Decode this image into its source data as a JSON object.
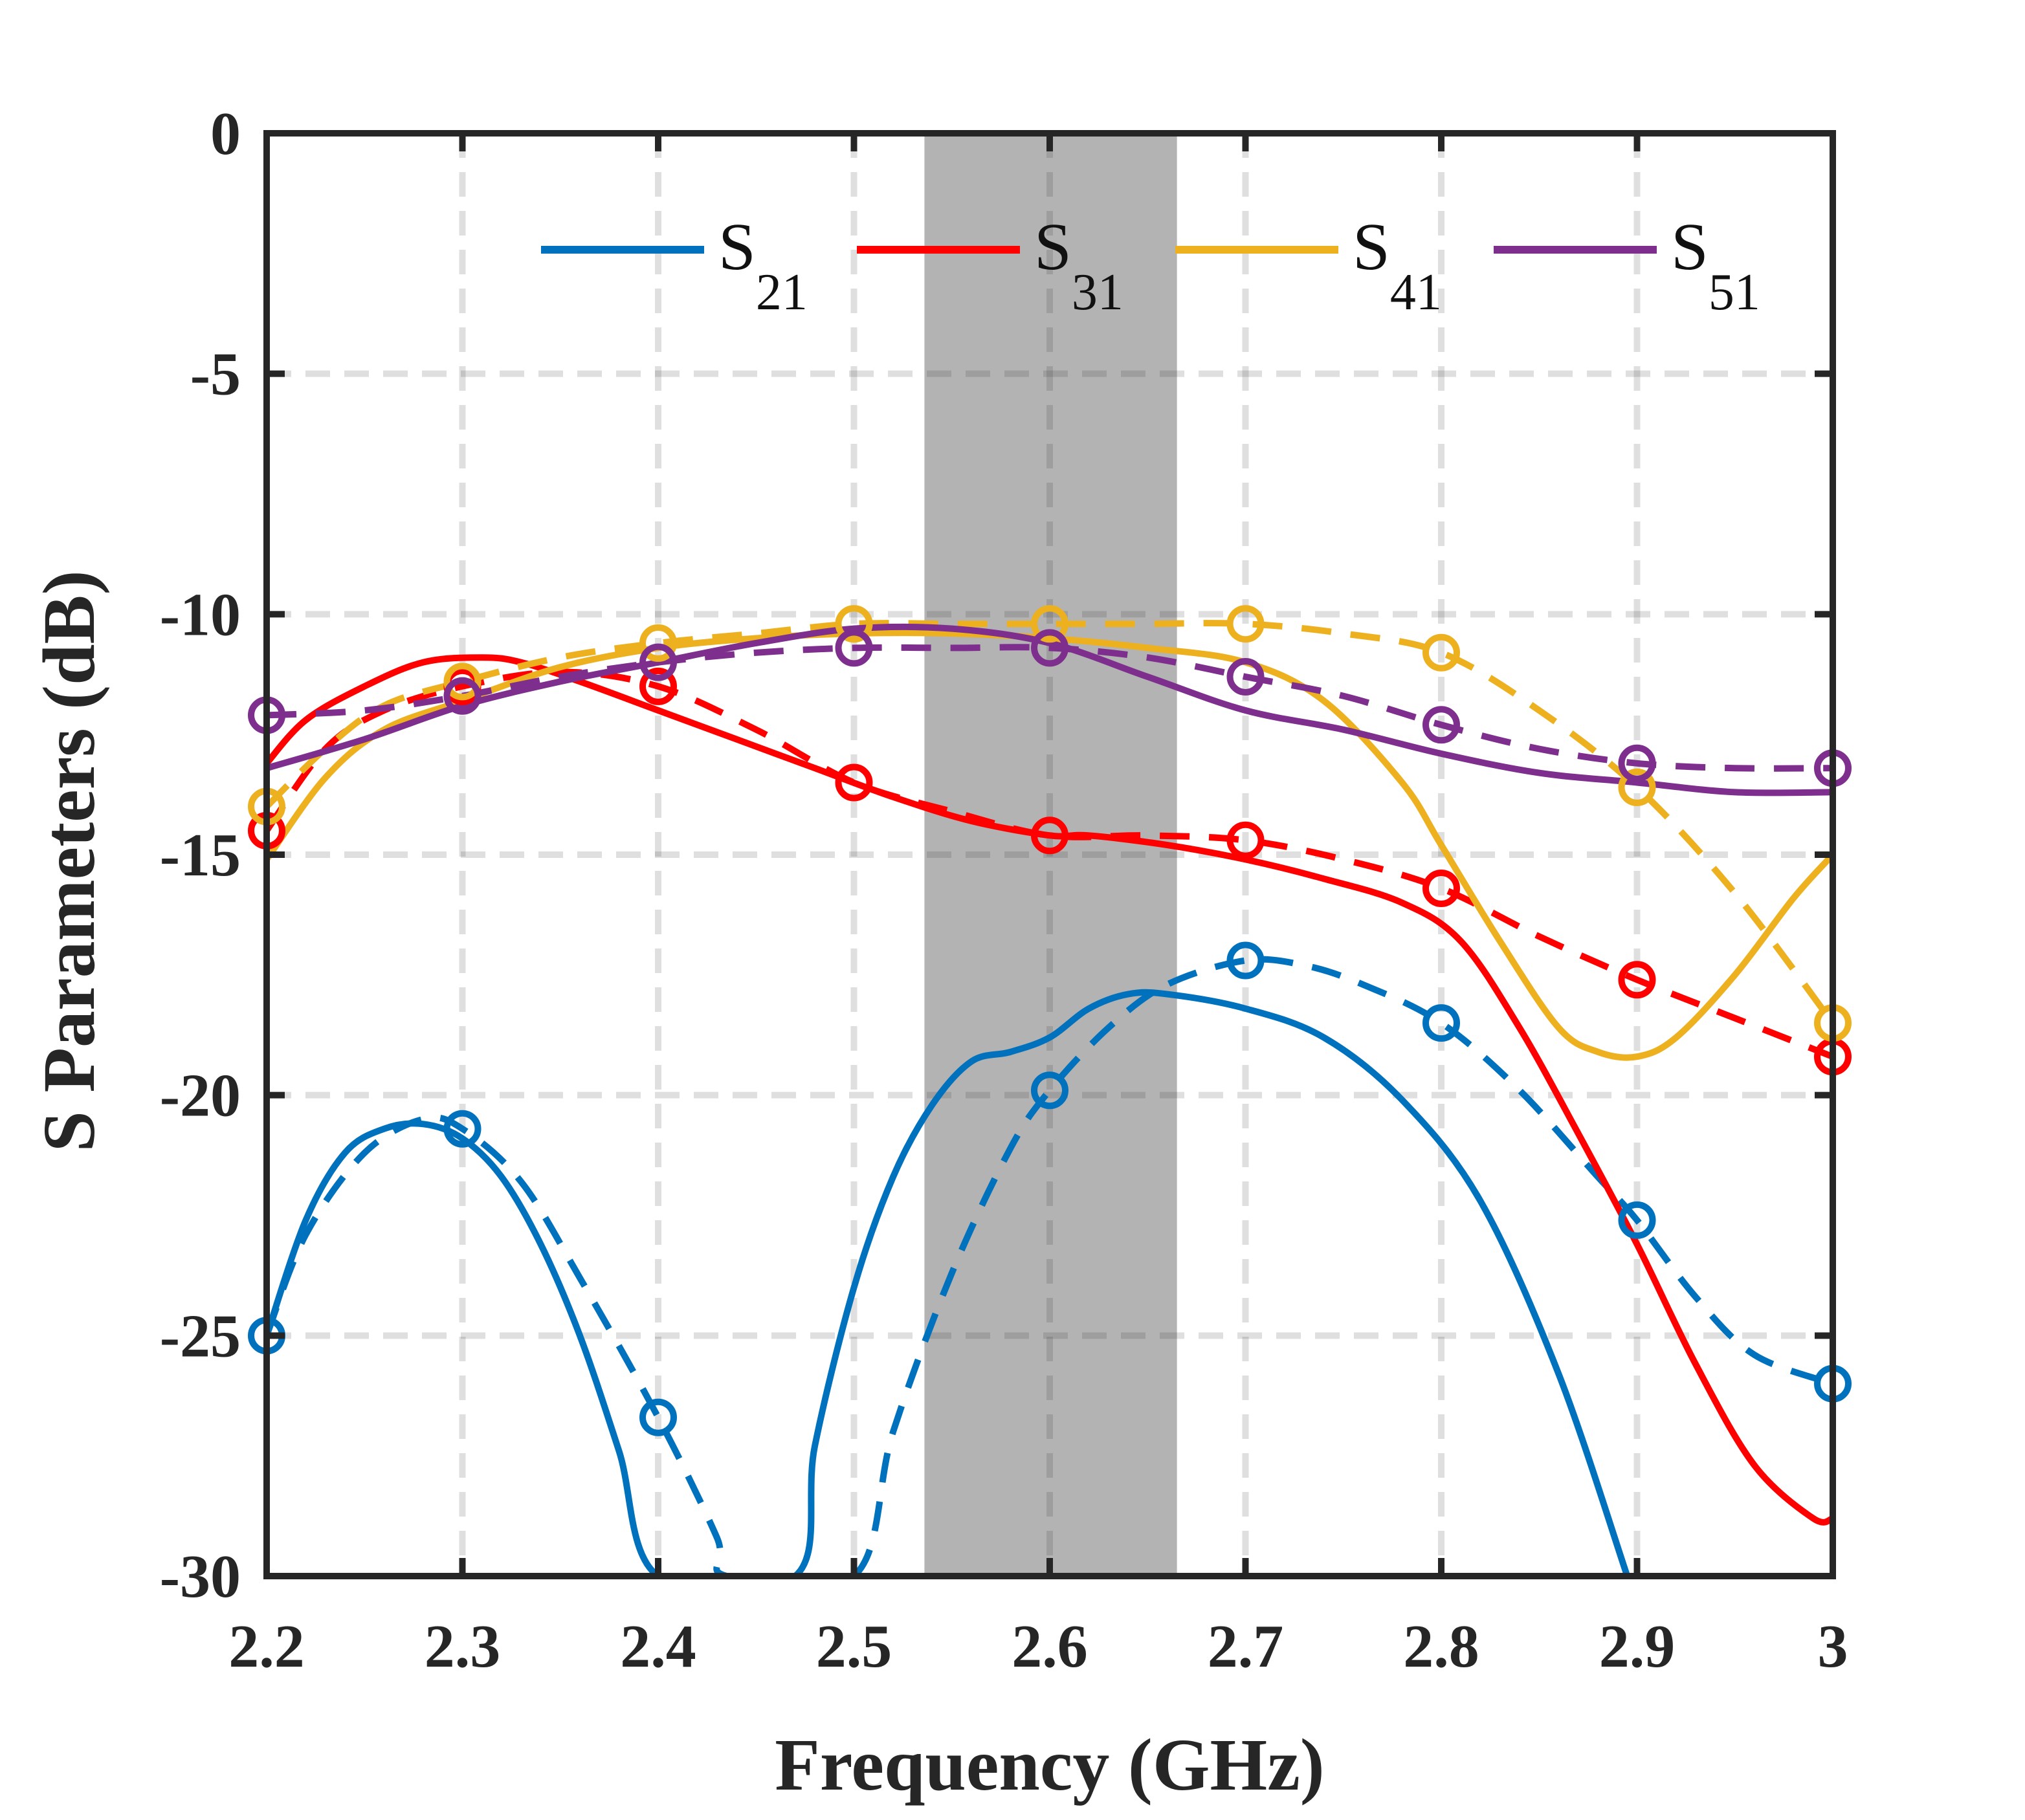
{
  "chart_data": {
    "type": "line",
    "title": "",
    "xlabel": "Frequency (GHz)",
    "ylabel": "S Parameters (dB)",
    "xlim": [
      2.2,
      3.0
    ],
    "ylim": [
      -30,
      0
    ],
    "xticks": [
      2.2,
      2.3,
      2.4,
      2.5,
      2.6,
      2.7,
      2.8,
      2.9,
      3.0
    ],
    "xtick_labels": [
      "2.2",
      "2.3",
      "2.4",
      "2.5",
      "2.6",
      "2.7",
      "2.8",
      "2.9",
      "3"
    ],
    "yticks": [
      0,
      -5,
      -10,
      -15,
      -20,
      -25,
      -30
    ],
    "ytick_labels": [
      "0",
      "-5",
      "-10",
      "-15",
      "-20",
      "-25",
      "-30"
    ],
    "grid": true,
    "legend_position": "top",
    "shaded_band": {
      "x_range": [
        2.536,
        2.665
      ],
      "color": "#999999"
    },
    "series": [
      {
        "name": "S21",
        "label_main": "S",
        "label_sub": "21",
        "color": "#0072BD",
        "solid": {
          "x": [
            2.2,
            2.22,
            2.24,
            2.26,
            2.28,
            2.3,
            2.32,
            2.34,
            2.36,
            2.38,
            2.4,
            2.47,
            2.48,
            2.5,
            2.52,
            2.54,
            2.56,
            2.58,
            2.6,
            2.62,
            2.64,
            2.66,
            2.7,
            2.74,
            2.78,
            2.82,
            2.86,
            2.895
          ],
          "y": [
            -25.0,
            -22.6,
            -21.2,
            -20.7,
            -20.6,
            -20.9,
            -21.7,
            -23.1,
            -25.0,
            -27.4,
            -30.0,
            -30.0,
            -27.3,
            -24.0,
            -21.7,
            -20.2,
            -19.3,
            -19.1,
            -18.8,
            -18.2,
            -17.9,
            -17.9,
            -18.2,
            -18.8,
            -20.1,
            -22.2,
            -25.8,
            -30.0
          ]
        },
        "dashed": {
          "x": [
            2.2,
            2.22,
            2.25,
            2.28,
            2.3,
            2.33,
            2.36,
            2.4,
            2.43,
            2.435,
            2.5,
            2.52,
            2.55,
            2.58,
            2.6,
            2.63,
            2.66,
            2.7,
            2.73,
            2.76,
            2.8,
            2.84,
            2.88,
            2.9,
            2.93,
            2.96,
            3.0
          ],
          "y": [
            -25.0,
            -22.9,
            -21.2,
            -20.5,
            -20.7,
            -21.8,
            -23.8,
            -26.7,
            -29.2,
            -30.0,
            -30.0,
            -27.0,
            -23.7,
            -21.1,
            -19.9,
            -18.6,
            -17.7,
            -17.2,
            -17.3,
            -17.7,
            -18.5,
            -19.9,
            -21.7,
            -22.6,
            -24.2,
            -25.4,
            -26.0
          ]
        },
        "markers": {
          "x": [
            2.2,
            2.3,
            2.4,
            2.6,
            2.7,
            2.8,
            2.9,
            3.0
          ],
          "y": [
            -25.0,
            -20.7,
            -26.7,
            -19.9,
            -17.2,
            -18.5,
            -22.6,
            -26.0
          ]
        }
      },
      {
        "name": "S31",
        "label_main": "S",
        "label_sub": "31",
        "color": "#FF0000",
        "solid": {
          "x": [
            2.2,
            2.22,
            2.25,
            2.28,
            2.31,
            2.33,
            2.36,
            2.4,
            2.44,
            2.48,
            2.52,
            2.56,
            2.6,
            2.62,
            2.66,
            2.7,
            2.74,
            2.78,
            2.81,
            2.84,
            2.87,
            2.9,
            2.93,
            2.96,
            2.99,
            3.0
          ],
          "y": [
            -13.1,
            -12.2,
            -11.5,
            -11.0,
            -10.9,
            -11.0,
            -11.4,
            -12.0,
            -12.6,
            -13.2,
            -13.8,
            -14.3,
            -14.6,
            -14.6,
            -14.8,
            -15.1,
            -15.5,
            -16.0,
            -16.8,
            -18.6,
            -20.8,
            -23.1,
            -25.6,
            -27.7,
            -28.8,
            -28.8
          ]
        },
        "dashed": {
          "x": [
            2.2,
            2.23,
            2.26,
            2.3,
            2.35,
            2.4,
            2.45,
            2.5,
            2.55,
            2.6,
            2.65,
            2.7,
            2.75,
            2.8,
            2.85,
            2.9,
            2.95,
            3.0
          ],
          "y": [
            -14.5,
            -12.8,
            -12.0,
            -11.5,
            -11.2,
            -11.5,
            -12.4,
            -13.5,
            -14.1,
            -14.6,
            -14.6,
            -14.7,
            -15.1,
            -15.7,
            -16.7,
            -17.6,
            -18.4,
            -19.2
          ]
        },
        "markers": {
          "x": [
            2.2,
            2.3,
            2.4,
            2.5,
            2.6,
            2.7,
            2.8,
            2.9,
            3.0
          ],
          "y": [
            -14.5,
            -11.5,
            -11.5,
            -13.5,
            -14.6,
            -14.7,
            -15.7,
            -17.6,
            -19.2
          ]
        }
      },
      {
        "name": "S41",
        "label_main": "S",
        "label_sub": "41",
        "color": "#EDB120",
        "solid": {
          "x": [
            2.2,
            2.23,
            2.26,
            2.3,
            2.35,
            2.4,
            2.45,
            2.5,
            2.55,
            2.6,
            2.65,
            2.7,
            2.74,
            2.78,
            2.8,
            2.83,
            2.86,
            2.88,
            2.9,
            2.92,
            2.95,
            2.98,
            3.0
          ],
          "y": [
            -15.1,
            -13.4,
            -12.4,
            -11.8,
            -11.1,
            -10.7,
            -10.5,
            -10.4,
            -10.4,
            -10.5,
            -10.7,
            -11.0,
            -11.8,
            -13.5,
            -14.8,
            -16.8,
            -18.6,
            -19.1,
            -19.2,
            -18.8,
            -17.5,
            -15.9,
            -15.0
          ]
        },
        "dashed": {
          "x": [
            2.2,
            2.23,
            2.26,
            2.3,
            2.35,
            2.4,
            2.45,
            2.5,
            2.55,
            2.6,
            2.65,
            2.7,
            2.75,
            2.8,
            2.85,
            2.9,
            2.95,
            3.0
          ],
          "y": [
            -14.0,
            -12.8,
            -11.9,
            -11.4,
            -10.9,
            -10.6,
            -10.4,
            -10.2,
            -10.2,
            -10.2,
            -10.2,
            -10.2,
            -10.4,
            -10.8,
            -12.0,
            -13.6,
            -15.8,
            -18.5
          ]
        },
        "markers": {
          "x": [
            2.2,
            2.3,
            2.4,
            2.5,
            2.6,
            2.7,
            2.8,
            2.9,
            3.0
          ],
          "y": [
            -14.0,
            -11.4,
            -10.6,
            -10.2,
            -10.2,
            -10.2,
            -10.8,
            -13.6,
            -18.5
          ]
        }
      },
      {
        "name": "S51",
        "label_main": "S",
        "label_sub": "51",
        "color": "#7E2F8E",
        "solid": {
          "x": [
            2.2,
            2.25,
            2.3,
            2.35,
            2.4,
            2.45,
            2.5,
            2.55,
            2.6,
            2.65,
            2.7,
            2.75,
            2.8,
            2.85,
            2.9,
            2.95,
            3.0
          ],
          "y": [
            -13.2,
            -12.6,
            -11.9,
            -11.4,
            -11.0,
            -10.6,
            -10.3,
            -10.3,
            -10.6,
            -11.3,
            -12.0,
            -12.4,
            -12.9,
            -13.3,
            -13.5,
            -13.7,
            -13.7
          ]
        },
        "dashed": {
          "x": [
            2.2,
            2.25,
            2.3,
            2.35,
            2.4,
            2.45,
            2.5,
            2.55,
            2.6,
            2.65,
            2.7,
            2.75,
            2.8,
            2.85,
            2.9,
            2.95,
            3.0
          ],
          "y": [
            -12.1,
            -12.0,
            -11.7,
            -11.3,
            -11.0,
            -10.8,
            -10.7,
            -10.7,
            -10.7,
            -10.9,
            -11.3,
            -11.7,
            -12.3,
            -12.8,
            -13.1,
            -13.2,
            -13.2
          ]
        },
        "markers": {
          "x": [
            2.2,
            2.3,
            2.4,
            2.5,
            2.6,
            2.7,
            2.8,
            2.9,
            3.0
          ],
          "y": [
            -12.1,
            -11.7,
            -11.0,
            -10.7,
            -10.7,
            -11.3,
            -12.3,
            -13.1,
            -13.2
          ]
        }
      }
    ]
  }
}
